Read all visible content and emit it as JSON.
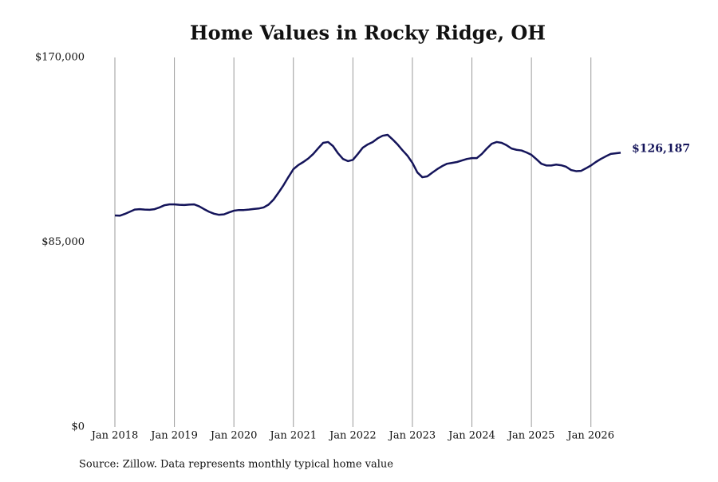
{
  "chart_data": {
    "type": "line",
    "title": "Home Values in Rocky Ridge, OH",
    "source": "Source: Zillow. Data represents monthly typical home value",
    "x": [
      "2018-01",
      "2018-02",
      "2018-03",
      "2018-04",
      "2018-05",
      "2018-06",
      "2018-07",
      "2018-08",
      "2018-09",
      "2018-10",
      "2018-11",
      "2018-12",
      "2019-01",
      "2019-02",
      "2019-03",
      "2019-04",
      "2019-05",
      "2019-06",
      "2019-07",
      "2019-08",
      "2019-09",
      "2019-10",
      "2019-11",
      "2019-12",
      "2020-01",
      "2020-02",
      "2020-03",
      "2020-04",
      "2020-05",
      "2020-06",
      "2020-07",
      "2020-08",
      "2020-09",
      "2020-10",
      "2020-11",
      "2020-12",
      "2021-01",
      "2021-02",
      "2021-03",
      "2021-04",
      "2021-05",
      "2021-06",
      "2021-07",
      "2021-08",
      "2021-09",
      "2021-10",
      "2021-11",
      "2021-12",
      "2022-01",
      "2022-02",
      "2022-03",
      "2022-04",
      "2022-05",
      "2022-06",
      "2022-07",
      "2022-08",
      "2022-09",
      "2022-10",
      "2022-11",
      "2022-12",
      "2023-01",
      "2023-02",
      "2023-03",
      "2023-04",
      "2023-05",
      "2023-06",
      "2023-07",
      "2023-08",
      "2023-09",
      "2023-10",
      "2023-11",
      "2023-12",
      "2024-01",
      "2024-02",
      "2024-03",
      "2024-04",
      "2024-05",
      "2024-06",
      "2024-07",
      "2024-08",
      "2024-09",
      "2024-10",
      "2024-11",
      "2024-12",
      "2025-01",
      "2025-02",
      "2025-03",
      "2025-04",
      "2025-05",
      "2025-06",
      "2025-07",
      "2025-08",
      "2025-09",
      "2025-10",
      "2025-11",
      "2025-12",
      "2026-01",
      "2026-02",
      "2026-03",
      "2026-04",
      "2026-05",
      "2026-06",
      "2026-07"
    ],
    "series": [
      {
        "name": "Typical home value",
        "color": "#14145a",
        "values": [
          97300,
          97200,
          98000,
          99000,
          100000,
          100200,
          100000,
          99900,
          100200,
          101000,
          102000,
          102400,
          102400,
          102200,
          102100,
          102300,
          102400,
          101500,
          100200,
          99000,
          98100,
          97600,
          97800,
          98700,
          99500,
          99800,
          99800,
          100000,
          100300,
          100500,
          101000,
          102300,
          104600,
          107800,
          111200,
          115000,
          118600,
          120500,
          121900,
          123500,
          125600,
          128200,
          130700,
          131100,
          129200,
          125900,
          123300,
          122300,
          122900,
          125600,
          128500,
          130000,
          131100,
          132800,
          134000,
          134400,
          132300,
          130000,
          127300,
          124800,
          121500,
          117100,
          114900,
          115300,
          117000,
          118600,
          120000,
          121100,
          121500,
          121900,
          122600,
          123300,
          123700,
          123700,
          125600,
          128100,
          130300,
          131100,
          130700,
          129600,
          128100,
          127500,
          127200,
          126300,
          125200,
          123200,
          121100,
          120300,
          120300,
          120700,
          120400,
          119700,
          118200,
          117700,
          117800,
          119000,
          120300,
          121900,
          123300,
          124500,
          125600,
          125900,
          126187
        ],
        "value_labels": [
          null,
          null,
          null,
          null,
          null,
          null,
          null,
          null,
          null,
          null,
          null,
          null,
          null,
          null,
          null,
          null,
          null,
          null,
          null,
          null,
          null,
          null,
          null,
          null,
          null,
          null,
          null,
          null,
          null,
          null,
          null,
          null,
          null,
          null,
          null,
          null,
          null,
          null,
          null,
          null,
          null,
          null,
          null,
          null,
          null,
          null,
          null,
          null,
          null,
          null,
          null,
          null,
          null,
          null,
          null,
          null,
          null,
          null,
          null,
          null,
          null,
          null,
          null,
          null,
          null,
          null,
          null,
          null,
          null,
          null,
          null,
          null,
          null,
          null,
          null,
          null,
          null,
          null,
          null,
          null,
          null,
          null,
          null,
          null,
          null,
          null,
          null,
          null,
          null,
          null,
          null,
          null,
          null,
          null,
          null,
          null,
          null,
          null,
          null,
          null,
          null,
          null,
          "$126,187"
        ]
      }
    ],
    "xlim": [
      "2018-01",
      "2026-07"
    ],
    "xticks": [
      {
        "value": "2018-01",
        "label": "Jan 2018"
      },
      {
        "value": "2019-01",
        "label": "Jan 2019"
      },
      {
        "value": "2020-01",
        "label": "Jan 2020"
      },
      {
        "value": "2021-01",
        "label": "Jan 2021"
      },
      {
        "value": "2022-01",
        "label": "Jan 2022"
      },
      {
        "value": "2023-01",
        "label": "Jan 2023"
      },
      {
        "value": "2024-01",
        "label": "Jan 2024"
      },
      {
        "value": "2025-01",
        "label": "Jan 2025"
      },
      {
        "value": "2026-01",
        "label": "Jan 2026"
      }
    ],
    "ylim": [
      0,
      170000
    ],
    "yticks": [
      {
        "value": 0,
        "label": "$0"
      },
      {
        "value": 85000,
        "label": "$85,000"
      },
      {
        "value": 170000,
        "label": "$170,000"
      }
    ],
    "grid": "x"
  }
}
